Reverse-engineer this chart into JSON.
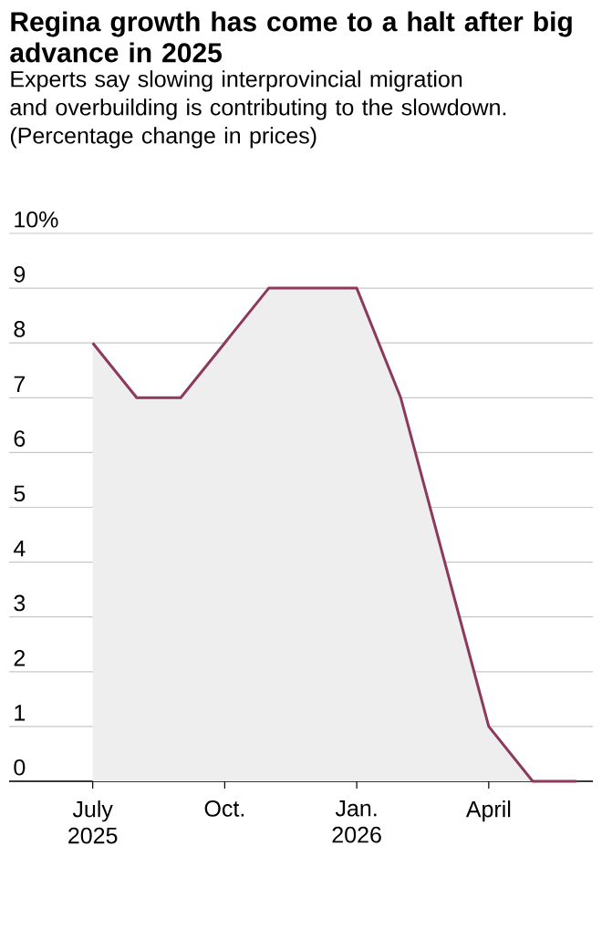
{
  "chart_data": {
    "type": "area",
    "title": "Regina growth has come to a halt after big advance in 2025",
    "subtitle": "Experts say slowing interprovincial migration and overbuilding is contributing to the slowdown. (Percentage change in prices)",
    "x": [
      "2025-07",
      "2025-08",
      "2025-09",
      "2025-10",
      "2025-11",
      "2025-12",
      "2026-01",
      "2026-02",
      "2026-03",
      "2026-04",
      "2026-05",
      "2026-06"
    ],
    "values": [
      8,
      7,
      7,
      8,
      9,
      9,
      9,
      7,
      4,
      1,
      0,
      0
    ],
    "color": "#8b3a5e",
    "xlim": [
      "2025-05-04",
      "2026-06-12"
    ],
    "xticks": [
      {
        "value": "2025-07",
        "label": "July 2025"
      },
      {
        "value": "2025-10",
        "label": "Oct."
      },
      {
        "value": "2026-01",
        "label": "Jan. 2026"
      },
      {
        "value": "2026-04",
        "label": "April"
      }
    ],
    "ylim": [
      0,
      10
    ],
    "yticks": [
      0,
      1,
      2,
      3,
      4,
      5,
      6,
      7,
      8,
      {
        "value": 9,
        "label": "9"
      },
      {
        "value": 10,
        "label": "10%"
      }
    ],
    "grid": "y"
  }
}
